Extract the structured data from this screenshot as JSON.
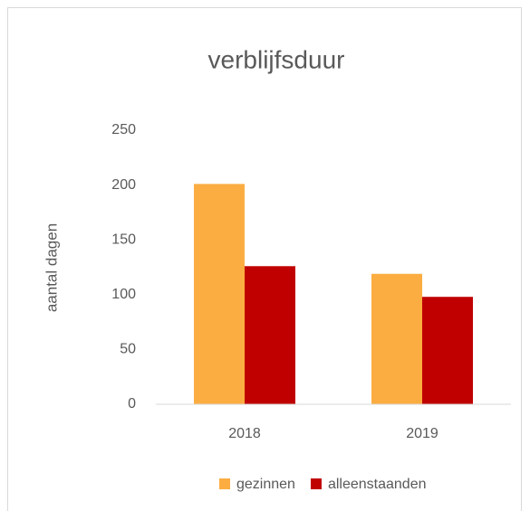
{
  "chart_data": {
    "type": "bar",
    "title": "verblijfsduur",
    "y_label": "aantal dagen",
    "categories": [
      "2018",
      "2019"
    ],
    "series": [
      {
        "name": "gezinnen",
        "color": "#fbad41",
        "values": [
          201,
          119
        ]
      },
      {
        "name": "alleenstaanden",
        "color": "#c00000",
        "values": [
          126,
          98
        ]
      }
    ],
    "ylim": [
      0,
      250
    ],
    "yticks": [
      0,
      50,
      100,
      150,
      200,
      250
    ],
    "grid": false
  }
}
